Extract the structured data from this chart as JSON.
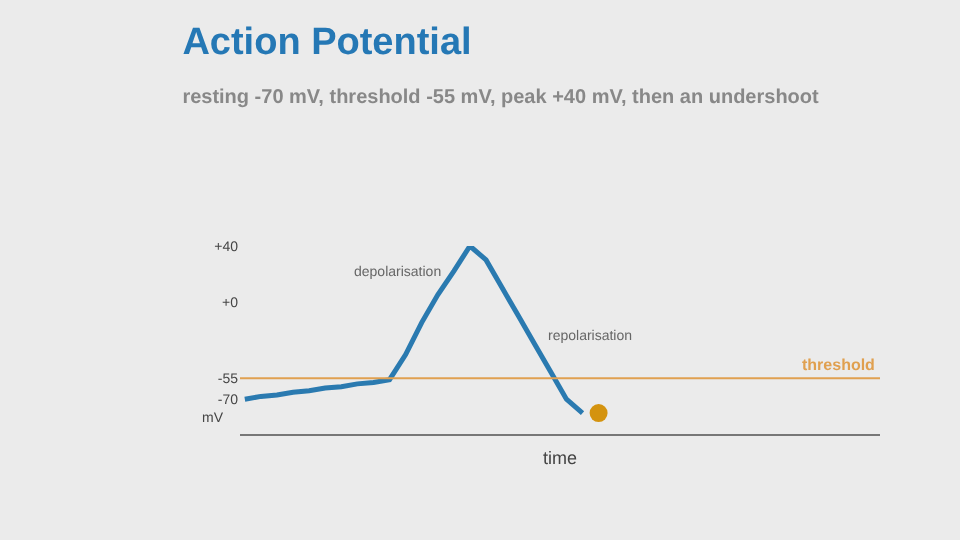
{
  "chart_data": {
    "type": "line",
    "title": "Action Potential",
    "subtitle": "resting -70 mV, threshold -55 mV, peak +40 mV, then an undershoot",
    "xlabel": "time",
    "ylabel": "mV",
    "categories": [
      null,
      null,
      null,
      null,
      null,
      null,
      null,
      null,
      null,
      null,
      null,
      null,
      null,
      null,
      null,
      null,
      null,
      null,
      null,
      null,
      null,
      null,
      null
    ],
    "series": [
      {
        "color": "#2a7ab0",
        "values": [
          -70,
          -68,
          -67,
          -65,
          -64,
          -62,
          -61,
          -59,
          -58,
          -56,
          -38,
          -15,
          5,
          22,
          40,
          30,
          10,
          -10,
          -30,
          -50,
          -70,
          -80,
          null
        ]
      },
      {
        "type": "scatter",
        "color": "#d4930f",
        "values": [
          null,
          null,
          null,
          null,
          null,
          null,
          null,
          null,
          null,
          null,
          null,
          null,
          null,
          null,
          null,
          null,
          null,
          null,
          null,
          null,
          null,
          null,
          -80
        ]
      }
    ],
    "annotations": [
      "depolarisation",
      "repolarisation"
    ],
    "ref_lines": [
      {
        "axis": "y",
        "value": -55,
        "label": "threshold",
        "color": "#e0a050"
      }
    ],
    "ylim": [
      -95,
      40
    ],
    "yticks": [
      {
        "value": 40,
        "label": "+40"
      },
      {
        "value": 0,
        "label": "+0"
      },
      -55,
      -70
    ],
    "tick_labels": "y",
    "grid": false
  }
}
